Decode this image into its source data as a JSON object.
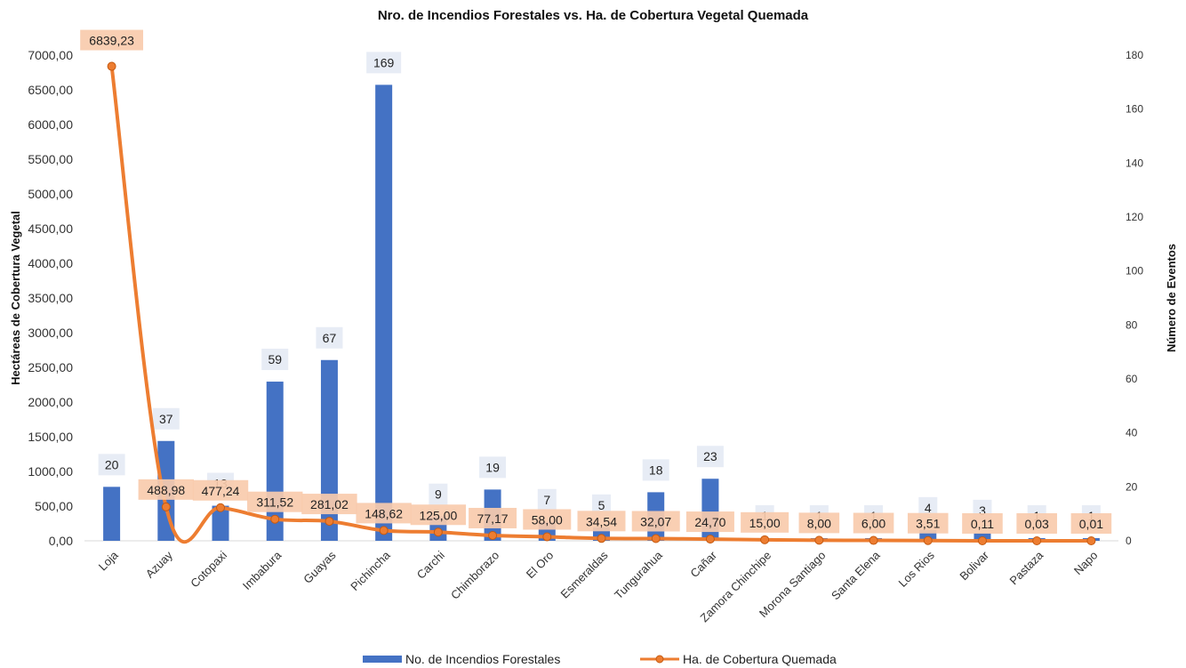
{
  "chart_data": {
    "type": "bar-line combo",
    "title": "Nro. de Incendios Forestales vs. Ha. de Cobertura Vegetal Quemada",
    "ylabel_left": "Hectáreas de Cobertura Vegetal",
    "ylabel_right": "Número de Eventos",
    "ylim_left": [
      0,
      7000
    ],
    "ylim_right": [
      0,
      180
    ],
    "yticks_left": [
      "0,00",
      "500,00",
      "1000,00",
      "1500,00",
      "2000,00",
      "2500,00",
      "3000,00",
      "3500,00",
      "4000,00",
      "4500,00",
      "5000,00",
      "5500,00",
      "6000,00",
      "6500,00",
      "7000,00"
    ],
    "yticks_right": [
      "0",
      "20",
      "40",
      "60",
      "80",
      "100",
      "120",
      "140",
      "160",
      "180"
    ],
    "categories": [
      "Loja",
      "Azuay",
      "Cotopaxi",
      "Imbabura",
      "Guayas",
      "Pichincha",
      "Carchi",
      "Chimborazo",
      "El Oro",
      "Esmeraldas",
      "Tungurahua",
      "Cañar",
      "Zamora Chinchipe",
      "Morona Santiago",
      "Santa Elena",
      "Los Rios",
      "Bolivar",
      "Pastaza",
      "Napo"
    ],
    "series": [
      {
        "name": "No. de Incendios Forestales",
        "type": "bar",
        "axis": "right",
        "color": "#4472C4",
        "values": [
          20,
          37,
          13,
          59,
          67,
          169,
          9,
          19,
          7,
          5,
          18,
          23,
          1,
          1,
          1,
          4,
          3,
          1,
          1
        ],
        "labels": [
          "20",
          "37",
          "13",
          "59",
          "67",
          "169",
          "9",
          "19",
          "7",
          "5",
          "18",
          "23",
          "1",
          "1",
          "1",
          "4",
          "3",
          "1",
          "1"
        ]
      },
      {
        "name": "Ha. de Cobertura Quemada",
        "type": "line",
        "axis": "left",
        "color": "#ED7D31",
        "values": [
          6839.23,
          488.98,
          477.24,
          311.52,
          281.02,
          148.62,
          125.0,
          77.17,
          58.0,
          34.54,
          32.07,
          24.7,
          15.0,
          8.0,
          6.0,
          3.51,
          0.11,
          0.03,
          0.01
        ],
        "labels": [
          "6839,23",
          "488,98",
          "477,24",
          "311,52",
          "281,02",
          "148,62",
          "125,00",
          "77,17",
          "58,00",
          "34,54",
          "32,07",
          "24,70",
          "15,00",
          "8,00",
          "6,00",
          "3,51",
          "0,11",
          "0,03",
          "0,01"
        ]
      }
    ],
    "legend_position": "bottom",
    "grid": false
  }
}
